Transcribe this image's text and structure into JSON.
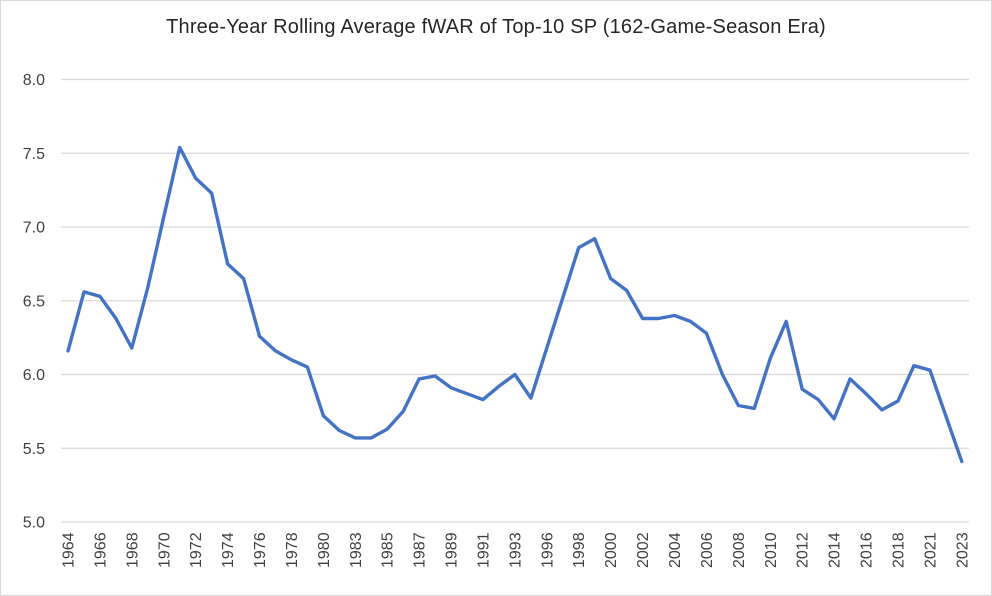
{
  "chart_data": {
    "type": "line",
    "title": "Three-Year Rolling Average fWAR of Top-10 SP (162-Game-Season Era)",
    "categories": [
      1964,
      1965,
      1966,
      1967,
      1968,
      1969,
      1970,
      1971,
      1972,
      1973,
      1974,
      1975,
      1976,
      1977,
      1978,
      1979,
      1980,
      1982,
      1983,
      1984,
      1985,
      1986,
      1987,
      1988,
      1989,
      1990,
      1991,
      1992,
      1993,
      1995,
      1996,
      1997,
      1998,
      1999,
      2000,
      2001,
      2002,
      2003,
      2004,
      2005,
      2006,
      2007,
      2008,
      2009,
      2010,
      2011,
      2012,
      2013,
      2014,
      2015,
      2016,
      2017,
      2018,
      2019,
      2021,
      2022,
      2023
    ],
    "values": [
      6.16,
      6.56,
      6.53,
      6.38,
      6.18,
      6.59,
      7.07,
      7.54,
      7.33,
      7.23,
      6.75,
      6.65,
      6.26,
      6.16,
      6.1,
      6.05,
      5.72,
      5.62,
      5.57,
      5.57,
      5.63,
      5.75,
      5.97,
      5.99,
      5.91,
      5.87,
      5.83,
      5.92,
      6.0,
      5.84,
      6.18,
      6.52,
      6.86,
      6.92,
      6.65,
      6.57,
      6.38,
      6.38,
      6.4,
      6.36,
      6.28,
      6.0,
      5.79,
      5.77,
      6.11,
      6.36,
      5.9,
      5.83,
      5.7,
      5.97,
      5.87,
      5.76,
      5.82,
      6.06,
      6.03,
      5.72,
      5.41
    ],
    "xtick_labels": [
      "1964",
      "1966",
      "1968",
      "1970",
      "1972",
      "1974",
      "1976",
      "1978",
      "1980",
      "1983",
      "1985",
      "1987",
      "1989",
      "1991",
      "1993",
      "1996",
      "1998",
      "2000",
      "2002",
      "2004",
      "2006",
      "2008",
      "2010",
      "2012",
      "2014",
      "2016",
      "2018",
      "2021",
      "2023"
    ],
    "x_label_every": 2,
    "yticks": [
      "5.0",
      "5.5",
      "6.0",
      "6.5",
      "7.0",
      "7.5",
      "8.0"
    ],
    "ylim": [
      5.0,
      8.0
    ],
    "xlabel": "",
    "ylabel": "",
    "legend": "none",
    "grid": "horizontal",
    "line_color": "#4472C4",
    "gridline_color": "#d9d9d9",
    "tick_label_color": "#404040",
    "title_color": "#262626",
    "background_color": "#ffffff"
  }
}
